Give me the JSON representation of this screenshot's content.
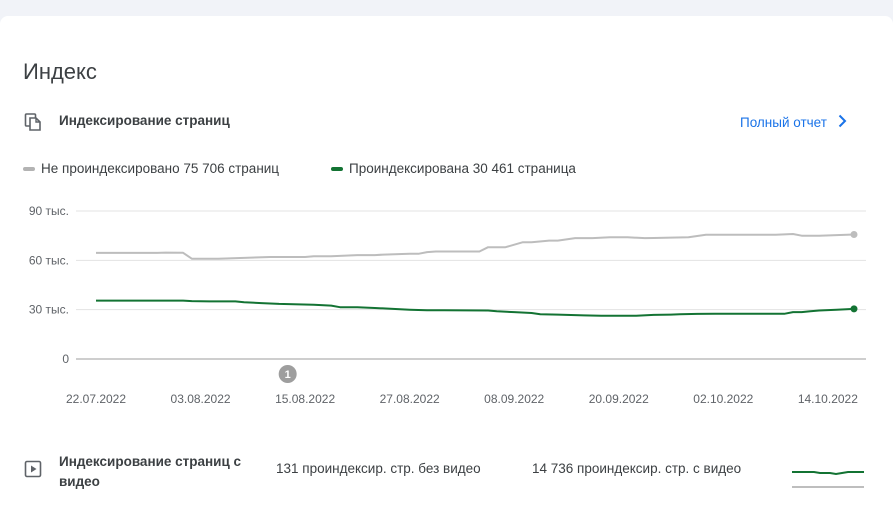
{
  "page": {
    "title": "Индекс"
  },
  "indexing": {
    "title": "Индексирование страниц",
    "full_report_label": "Полный отчет",
    "icon": "copy-pages-icon"
  },
  "legend": [
    {
      "label": "Не проиндексировано 75 706 страниц",
      "color": "#b3b3b3"
    },
    {
      "label": "Проиндексирована 30 461 страница",
      "color": "#137333"
    }
  ],
  "chart_data": {
    "type": "line",
    "y_tick_labels": [
      "90 тыс.",
      "60 тыс.",
      "30 тыс.",
      "0"
    ],
    "y_ticks": [
      90000,
      60000,
      30000,
      0
    ],
    "ylim": [
      0,
      90000
    ],
    "x_tick_labels": [
      "22.07.2022",
      "03.08.2022",
      "15.08.2022",
      "27.08.2022",
      "08.09.2022",
      "20.09.2022",
      "02.10.2022",
      "14.10.2022"
    ],
    "x_ticks": [
      0,
      12,
      24,
      36,
      48,
      60,
      72,
      84
    ],
    "x_range": [
      0,
      87
    ],
    "annotations": [
      {
        "label": "1",
        "x": 22
      }
    ],
    "grid": true,
    "series": [
      {
        "name": "Не проиндексировано",
        "color": "#bdbdbd",
        "x": [
          0,
          7,
          8,
          10,
          11,
          14,
          17,
          20,
          22,
          24,
          25,
          27,
          30,
          32,
          33,
          36,
          37,
          38,
          39,
          40,
          41,
          43,
          44,
          45,
          47,
          49,
          50,
          52,
          53,
          55,
          57,
          59,
          61,
          63,
          64,
          66,
          68,
          70,
          72,
          74,
          76,
          78,
          79,
          80,
          81,
          83,
          87
        ],
        "values": [
          64500,
          64500,
          64700,
          64600,
          61000,
          61000,
          61500,
          62000,
          62000,
          62000,
          62500,
          62500,
          63200,
          63200,
          63500,
          64000,
          64000,
          65000,
          65400,
          65400,
          65400,
          65400,
          65400,
          68000,
          68000,
          71000,
          71000,
          72000,
          72000,
          73500,
          73500,
          74000,
          74000,
          73500,
          73600,
          73800,
          74000,
          75500,
          75500,
          75500,
          75500,
          75500,
          75800,
          76000,
          75000,
          75000,
          75706
        ]
      },
      {
        "name": "Проиндексирована",
        "color": "#137333",
        "x": [
          0,
          6,
          10,
          11,
          13,
          16,
          17,
          19,
          21,
          25,
          27,
          28,
          30,
          32,
          33,
          36,
          38,
          40,
          45,
          46,
          48,
          50,
          51,
          53,
          56,
          58,
          60,
          62,
          64,
          66,
          67,
          69,
          71,
          73,
          75,
          77,
          79,
          80,
          81,
          82,
          83,
          85,
          87
        ],
        "values": [
          35500,
          35500,
          35500,
          35200,
          35000,
          35000,
          34500,
          34000,
          33500,
          33000,
          32500,
          31500,
          31500,
          31000,
          30800,
          30000,
          29600,
          29600,
          29500,
          29000,
          28500,
          28000,
          27200,
          27000,
          26500,
          26300,
          26300,
          26300,
          26800,
          27000,
          27200,
          27400,
          27500,
          27500,
          27500,
          27500,
          27500,
          28500,
          28500,
          29000,
          29500,
          30000,
          30461
        ]
      }
    ]
  },
  "video": {
    "title": "Индексирование страниц с видео",
    "icon": "video-file-icon",
    "without_video": "131 проиндексир. стр. без видео",
    "with_video": "14 736 проиндексир. стр. с видео"
  }
}
